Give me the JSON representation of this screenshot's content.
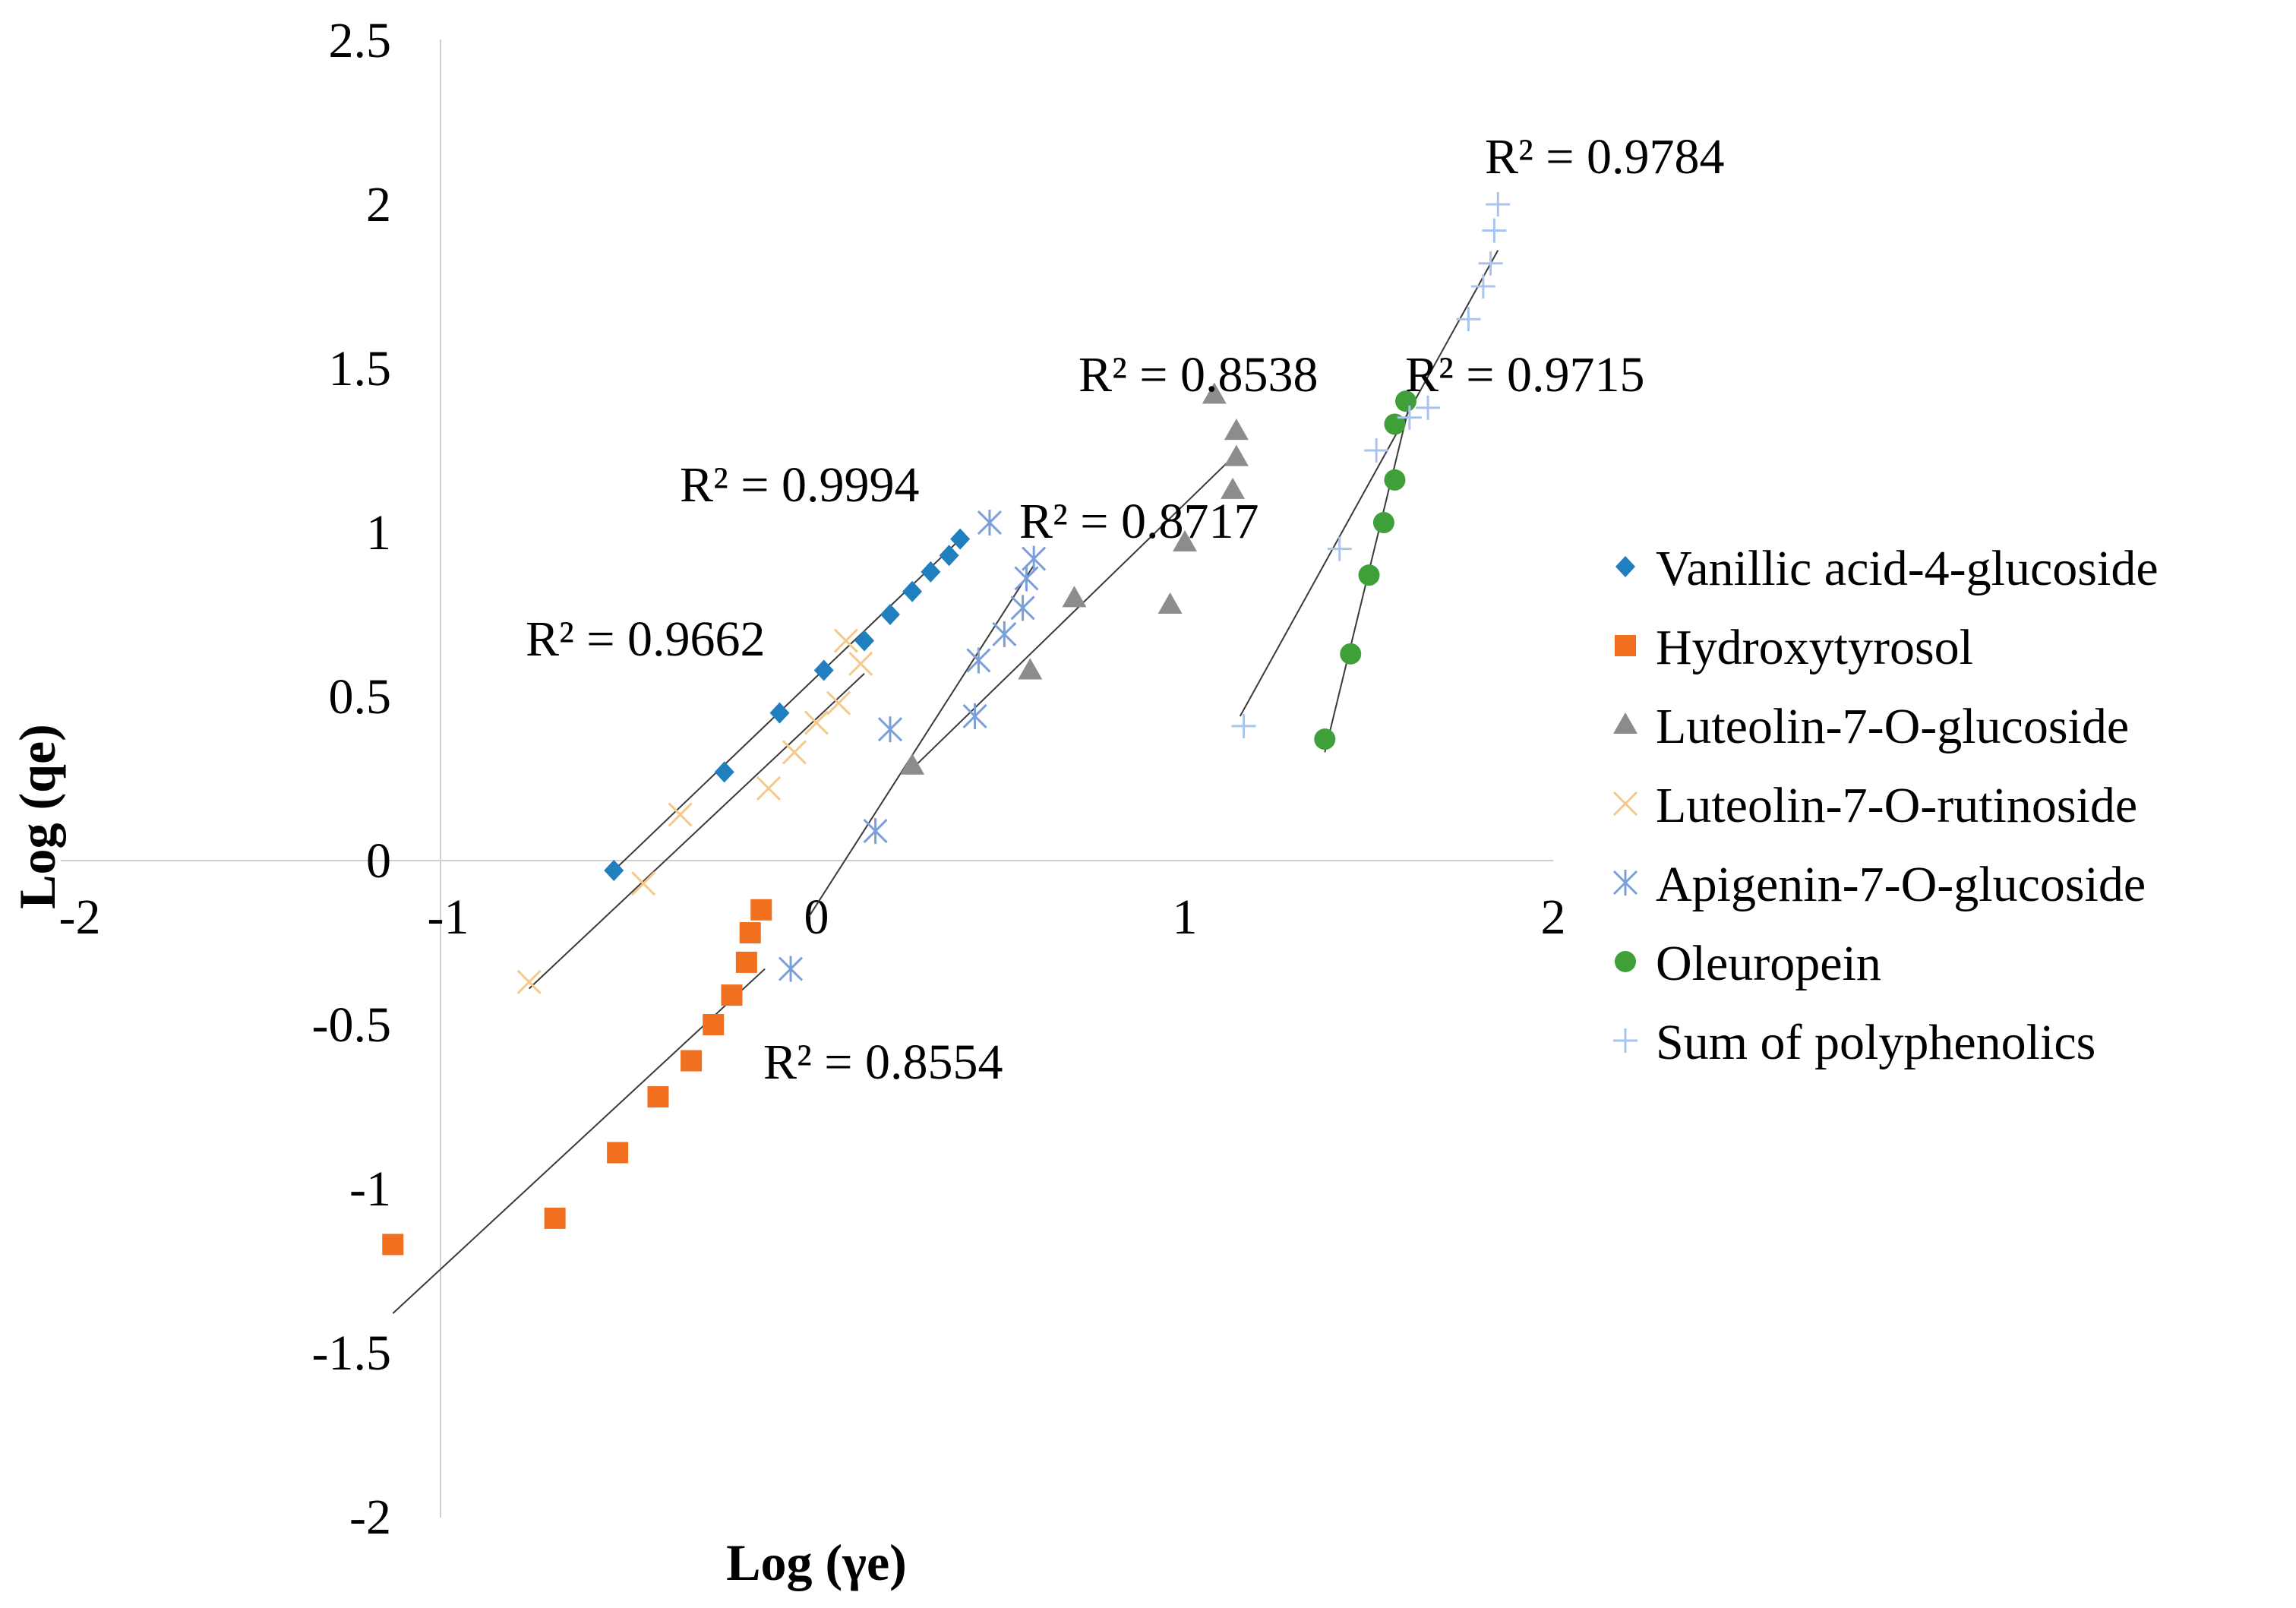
{
  "chart_data": {
    "type": "scatter",
    "xlabel": "Log (γe)",
    "ylabel": "Log (qe)",
    "xlim": [
      -2,
      2
    ],
    "ylim": [
      -2,
      2.5
    ],
    "x_ticks": [
      "-2",
      "-1",
      "0",
      "1",
      "2"
    ],
    "y_ticks": [
      "2.5",
      "2",
      "1.5",
      "1",
      "0.5",
      "0",
      "-0.5",
      "-1",
      "-1.5",
      "-2"
    ],
    "grid": false,
    "legend_position": "right",
    "series": [
      {
        "name": "Vanillic acid-4-glucoside",
        "marker": "diamond",
        "color": "#1f7fbf",
        "r2_label": "R² = 0.9994",
        "points": [
          [
            -0.55,
            -0.03
          ],
          [
            -0.25,
            0.27
          ],
          [
            -0.1,
            0.45
          ],
          [
            0.02,
            0.58
          ],
          [
            0.13,
            0.67
          ],
          [
            0.2,
            0.75
          ],
          [
            0.26,
            0.82
          ],
          [
            0.31,
            0.88
          ],
          [
            0.36,
            0.93
          ],
          [
            0.39,
            0.98
          ]
        ],
        "trendline": [
          [
            -0.55,
            -0.03
          ],
          [
            0.4,
            0.99
          ]
        ]
      },
      {
        "name": "Hydroxytyrosol",
        "marker": "square",
        "color": "#f07020",
        "r2_label": "R² = 0.8554",
        "points": [
          [
            -1.15,
            -1.17
          ],
          [
            -0.71,
            -1.09
          ],
          [
            -0.54,
            -0.89
          ],
          [
            -0.43,
            -0.72
          ],
          [
            -0.34,
            -0.61
          ],
          [
            -0.28,
            -0.5
          ],
          [
            -0.23,
            -0.41
          ],
          [
            -0.19,
            -0.31
          ],
          [
            -0.18,
            -0.22
          ],
          [
            -0.15,
            -0.15
          ]
        ],
        "trendline": [
          [
            -1.15,
            -1.38
          ],
          [
            -0.14,
            -0.33
          ]
        ]
      },
      {
        "name": "Luteolin-7-O-glucoside",
        "marker": "triangle",
        "color": "#8c8c8c",
        "r2_label": "R² = 0.8538",
        "points": [
          [
            0.26,
            0.29
          ],
          [
            0.58,
            0.58
          ],
          [
            0.7,
            0.8
          ],
          [
            0.96,
            0.78
          ],
          [
            1.0,
            0.97
          ],
          [
            1.08,
            1.42
          ],
          [
            1.14,
            1.31
          ],
          [
            1.14,
            1.23
          ],
          [
            1.13,
            1.13
          ]
        ],
        "trendline": [
          [
            0.26,
            0.28
          ],
          [
            1.14,
            1.24
          ]
        ]
      },
      {
        "name": "Luteolin-7-O-rutinoside",
        "marker": "x",
        "color": "#f5c98a",
        "r2_label": "R² = 0.9662",
        "points": [
          [
            -0.78,
            -0.37
          ],
          [
            -0.47,
            -0.07
          ],
          [
            -0.37,
            0.14
          ],
          [
            -0.13,
            0.22
          ],
          [
            -0.06,
            0.33
          ],
          [
            0.0,
            0.42
          ],
          [
            0.06,
            0.48
          ],
          [
            0.12,
            0.6
          ],
          [
            0.08,
            0.67
          ]
        ],
        "trendline": [
          [
            -0.78,
            -0.39
          ],
          [
            0.13,
            0.57
          ]
        ]
      },
      {
        "name": "Apigenin-7-O-glucoside",
        "marker": "asterisk",
        "color": "#7b9fd8",
        "r2_label": "R² = 0.8717",
        "points": [
          [
            -0.07,
            -0.33
          ],
          [
            0.16,
            0.09
          ],
          [
            0.2,
            0.4
          ],
          [
            0.43,
            0.44
          ],
          [
            0.44,
            0.61
          ],
          [
            0.51,
            0.69
          ],
          [
            0.56,
            0.77
          ],
          [
            0.57,
            0.86
          ],
          [
            0.59,
            0.92
          ],
          [
            0.47,
            1.03
          ]
        ],
        "trendline": [
          [
            -0.02,
            -0.17
          ],
          [
            0.59,
            0.9
          ]
        ]
      },
      {
        "name": "Oleuropein",
        "marker": "circle",
        "color": "#3fa03a",
        "r2_label": "R² = 0.9715",
        "points": [
          [
            1.38,
            0.37
          ],
          [
            1.45,
            0.63
          ],
          [
            1.5,
            0.87
          ],
          [
            1.54,
            1.03
          ],
          [
            1.57,
            1.16
          ],
          [
            1.57,
            1.33
          ],
          [
            1.6,
            1.4
          ]
        ],
        "trendline": [
          [
            1.38,
            0.33
          ],
          [
            1.61,
            1.39
          ]
        ]
      },
      {
        "name": "Sum of polyphenolics",
        "marker": "plus",
        "color": "#a9c4ec",
        "r2_label": "R² = 0.9784",
        "points": [
          [
            1.16,
            0.41
          ],
          [
            1.42,
            0.95
          ],
          [
            1.52,
            1.25
          ],
          [
            1.61,
            1.35
          ],
          [
            1.66,
            1.38
          ],
          [
            1.77,
            1.65
          ],
          [
            1.81,
            1.75
          ],
          [
            1.83,
            1.82
          ],
          [
            1.84,
            1.92
          ],
          [
            1.85,
            2.0
          ]
        ],
        "trendline": [
          [
            1.15,
            0.44
          ],
          [
            1.85,
            1.86
          ]
        ]
      }
    ]
  }
}
